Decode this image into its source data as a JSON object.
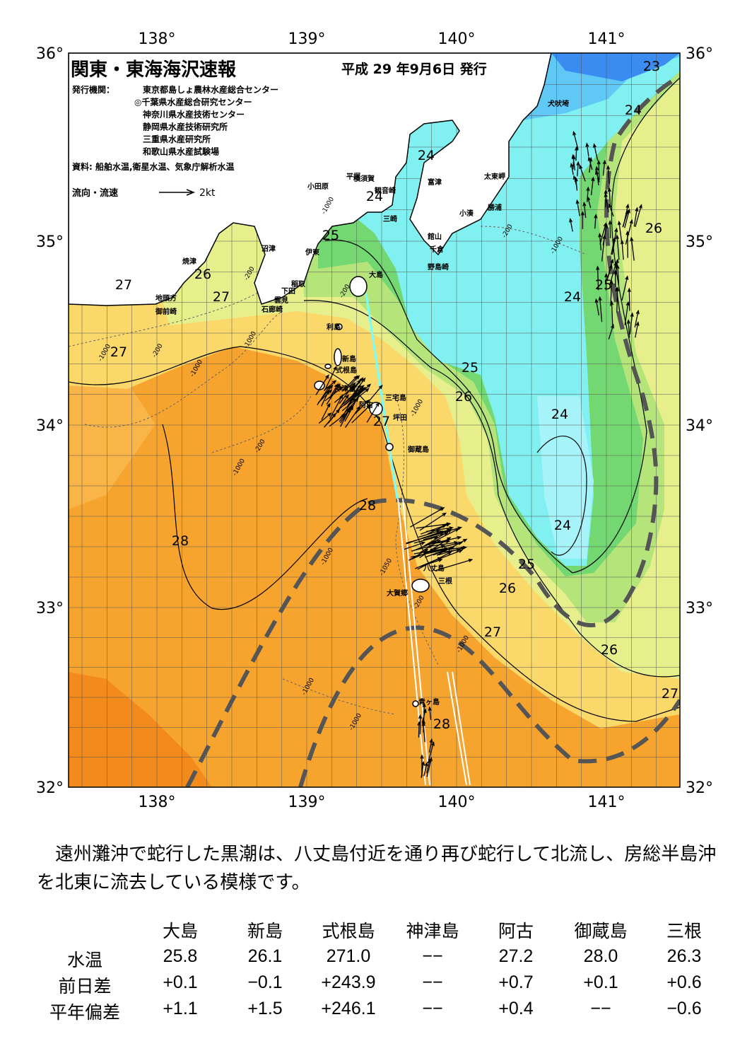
{
  "map": {
    "title": "関東・東海海沢速報",
    "date": "平成 29 年9月6日 発行",
    "publishers_label": "発行機関：",
    "publishers": [
      "東京都島しょ農林水産総合センター",
      "◎千葉県水産総合研究センター",
      "神奈川県水産技術センター",
      "静岡県水産技術研究所",
      "三重県水産研究所",
      "和歌山県水産試験場"
    ],
    "source": "資料: 船舶水温,衛星水温、気象庁解析水温",
    "legend_label": "流向・流速",
    "legend_scale": "2kt",
    "lat_labels": [
      "36°",
      "35°",
      "34°",
      "33°",
      "32°"
    ],
    "lon_labels": [
      "138°",
      "139°",
      "140°",
      "141°"
    ],
    "places": [
      "犬吠埼",
      "太東岬",
      "勝浦",
      "小湊",
      "富津",
      "横須賀",
      "平塚",
      "観音崎",
      "三崎",
      "小田原",
      "館山",
      "千倉",
      "野島崎",
      "沼津",
      "伊東",
      "稲取",
      "下田",
      "雲見",
      "石廊崎",
      "焼津",
      "地頭方",
      "御前崎",
      "大島",
      "利島",
      "新島",
      "式根島",
      "神津島",
      "三宅島",
      "阿古",
      "坪田",
      "御蔵島",
      "八丈島",
      "三根",
      "大賀郷",
      "青ヶ島"
    ],
    "isotherm_labels": [
      "23",
      "24",
      "24",
      "24",
      "25",
      "26",
      "27",
      "27",
      "27",
      "26",
      "25",
      "24",
      "25",
      "26",
      "27",
      "24",
      "28",
      "24",
      "28",
      "25",
      "26",
      "27",
      "26",
      "27",
      "28"
    ],
    "depth_labels": [
      "-1000",
      "-200",
      "-1000",
      "-200",
      "-1000",
      "-1000",
      "-200",
      "-1000",
      "-200",
      "-1000",
      "-1000",
      "-1050",
      "-200",
      "-1000",
      "-1000",
      "-1000",
      "-200",
      "-1000"
    ]
  },
  "summary": "遠州灘沖で蛇行した黒潮は、八丈島付近を通り再び蛇行して北流し、房総半島沖を北東に流去している模様です。",
  "table": {
    "header": [
      "大島",
      "新島",
      "式根島",
      "神津島",
      "阿古",
      "御蔵島",
      "三根"
    ],
    "rows": [
      [
        "水温",
        "25.8",
        "26.1",
        "271.0",
        "−−",
        "27.2",
        "28.0",
        "26.3"
      ],
      [
        "前日差",
        "+0.1",
        "−0.1",
        "+243.9",
        "−−",
        "+0.7",
        "+0.1",
        "+0.6"
      ],
      [
        "平年偏差",
        "+1.1",
        "+1.5",
        "+246.1",
        "−−",
        "+0.4",
        "−−",
        "−0.6"
      ]
    ]
  }
}
